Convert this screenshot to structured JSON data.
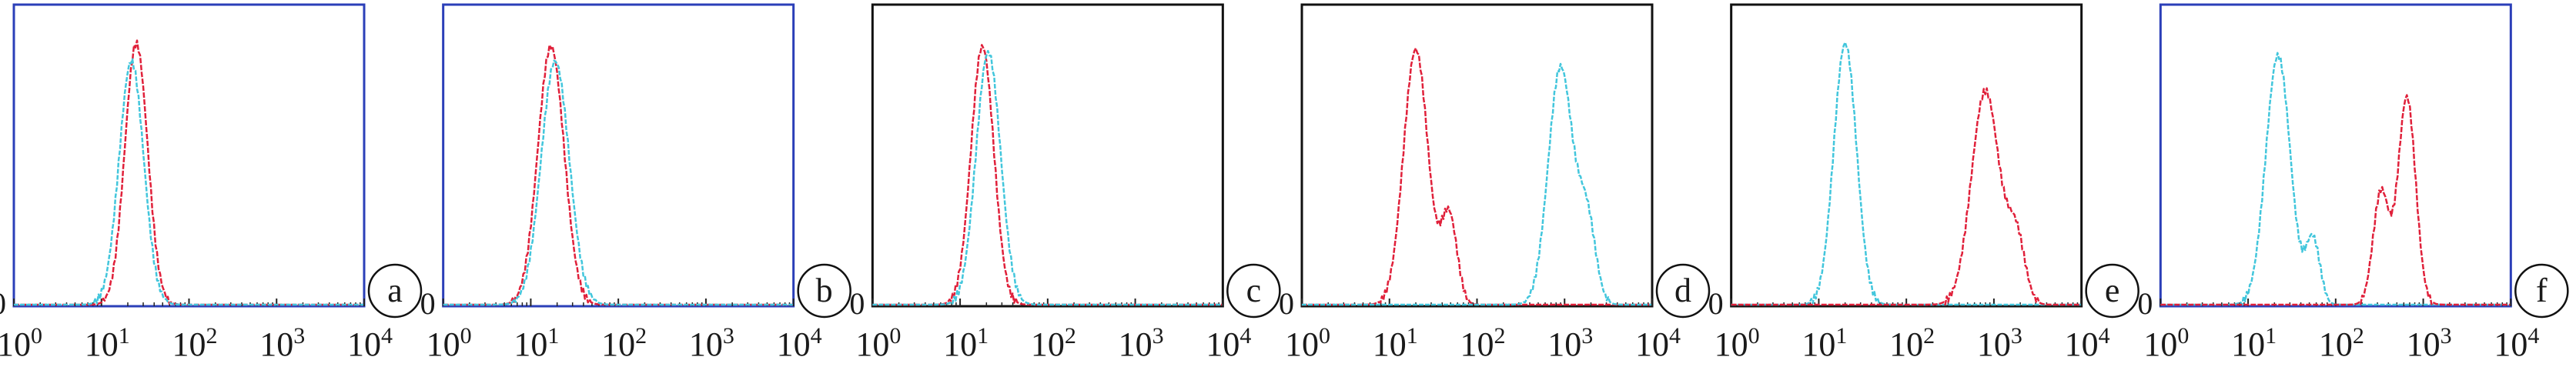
{
  "figure": {
    "x_tick_labels": [
      {
        "base": "10",
        "exp": "0"
      },
      {
        "base": "10",
        "exp": "1"
      },
      {
        "base": "10",
        "exp": "2"
      },
      {
        "base": "10",
        "exp": "3"
      },
      {
        "base": "10",
        "exp": "4"
      }
    ],
    "y_zero_label": "0"
  },
  "colors": {
    "red": "#e0203a",
    "cyan": "#42c6dc",
    "blue_frame": "#2b3fb8",
    "black_frame": "#111111"
  },
  "chart_data": [
    {
      "type": "line",
      "panel_label": "a",
      "frame_color": "blue_frame",
      "x_scale": "log",
      "xlim": [
        1,
        10000
      ],
      "ylim": [
        0,
        1
      ],
      "series": [
        {
          "color": "red",
          "peaks": [
            {
              "center": 25,
              "height": 0.88,
              "width": 0.13
            }
          ]
        },
        {
          "color": "cyan",
          "peaks": [
            {
              "center": 22,
              "height": 0.82,
              "width": 0.14
            }
          ]
        }
      ]
    },
    {
      "type": "line",
      "panel_label": "b",
      "frame_color": "blue_frame",
      "x_scale": "log",
      "xlim": [
        1,
        10000
      ],
      "ylim": [
        0,
        1
      ],
      "series": [
        {
          "color": "red",
          "peaks": [
            {
              "center": 17,
              "height": 0.87,
              "width": 0.15
            }
          ]
        },
        {
          "color": "cyan",
          "peaks": [
            {
              "center": 19,
              "height": 0.82,
              "width": 0.16
            }
          ]
        }
      ]
    },
    {
      "type": "line",
      "panel_label": "c",
      "frame_color": "black_frame",
      "x_scale": "log",
      "xlim": [
        1,
        10000
      ],
      "ylim": [
        0,
        1
      ],
      "series": [
        {
          "color": "red",
          "peaks": [
            {
              "center": 18,
              "height": 0.87,
              "width": 0.13
            }
          ]
        },
        {
          "color": "cyan",
          "peaks": [
            {
              "center": 21,
              "height": 0.85,
              "width": 0.14
            }
          ]
        }
      ]
    },
    {
      "type": "line",
      "panel_label": "d",
      "frame_color": "black_frame",
      "x_scale": "log",
      "xlim": [
        1,
        10000
      ],
      "ylim": [
        0,
        1
      ],
      "series": [
        {
          "color": "red",
          "peaks": [
            {
              "center": 20,
              "height": 0.86,
              "width": 0.14
            },
            {
              "center": 48,
              "height": 0.3,
              "width": 0.09
            }
          ]
        },
        {
          "color": "cyan",
          "peaks": [
            {
              "center": 900,
              "height": 0.8,
              "width": 0.14
            },
            {
              "center": 1800,
              "height": 0.28,
              "width": 0.1
            }
          ]
        }
      ]
    },
    {
      "type": "line",
      "panel_label": "e",
      "frame_color": "black_frame",
      "x_scale": "log",
      "xlim": [
        1,
        10000
      ],
      "ylim": [
        0,
        1
      ],
      "series": [
        {
          "color": "cyan",
          "peaks": [
            {
              "center": 20,
              "height": 0.88,
              "width": 0.13
            }
          ]
        },
        {
          "color": "red",
          "peaks": [
            {
              "center": 800,
              "height": 0.72,
              "width": 0.16
            },
            {
              "center": 1800,
              "height": 0.22,
              "width": 0.1
            }
          ]
        }
      ]
    },
    {
      "type": "line",
      "panel_label": "f",
      "frame_color": "blue_frame",
      "x_scale": "log",
      "xlim": [
        1,
        10000
      ],
      "ylim": [
        0,
        1
      ],
      "series": [
        {
          "color": "cyan",
          "peaks": [
            {
              "center": 22,
              "height": 0.84,
              "width": 0.14
            },
            {
              "center": 55,
              "height": 0.22,
              "width": 0.08
            }
          ]
        },
        {
          "color": "red",
          "peaks": [
            {
              "center": 650,
              "height": 0.7,
              "width": 0.1
            },
            {
              "center": 330,
              "height": 0.38,
              "width": 0.09
            }
          ]
        }
      ]
    }
  ]
}
